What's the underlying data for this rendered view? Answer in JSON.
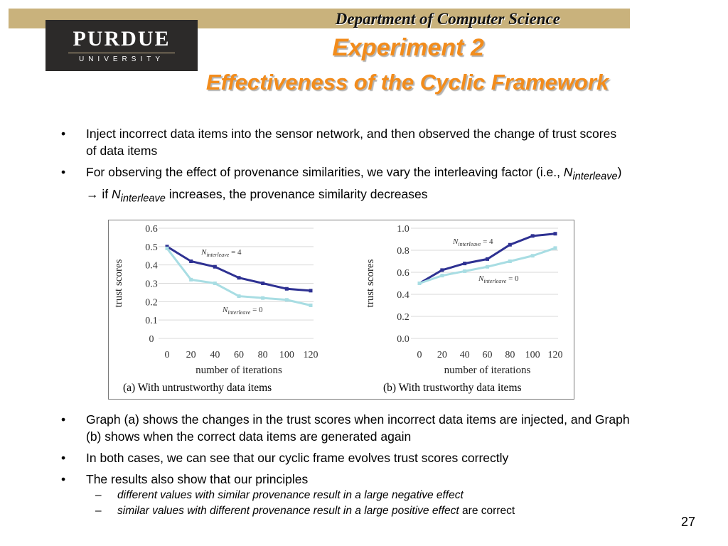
{
  "header": {
    "department": "Department of Computer Science",
    "logo_name": "PURDUE",
    "logo_sub": "UNIVERSITY"
  },
  "title": {
    "line1": "Experiment 2",
    "line2": "Effectiveness of the Cyclic Framework"
  },
  "bullets_top": [
    {
      "text": "Inject incorrect data items into the sensor network, and then observed the change of trust scores of data items"
    },
    {
      "text_before": "For observing the effect of provenance similarities, we vary the interleaving factor (i.e., ",
      "N": "N",
      "sub": "interleave",
      "arrow": "→",
      "text_if": " if ",
      "text_after": " increases, the provenance similarity decreases"
    }
  ],
  "bullets_bottom": [
    {
      "text": "Graph (a) shows the changes in the trust scores when incorrect data items are injected, and Graph (b) shows when the correct data items are generated again"
    },
    {
      "text": "In both cases, we can see that our cyclic frame evolves trust scores correctly"
    },
    {
      "text": "The results also show that our principles"
    }
  ],
  "sub_bullets": [
    {
      "dash": "–",
      "italic": "different values with similar provenance result in a large negative effect",
      "tail": ""
    },
    {
      "dash": "–",
      "italic": "similar values with different provenance result in a large positive effect",
      "tail": " are correct"
    }
  ],
  "page_number": "27",
  "colors": {
    "series_4": "#2e3192",
    "series_0": "#a8dde3",
    "title": "#f28c1c",
    "dept_bar": "#c9b27c",
    "logo_bg": "#2c2a29"
  },
  "chart_data": [
    {
      "type": "line",
      "caption": "(a) With untrustworthy data items",
      "xlabel": "number of iterations",
      "ylabel": "trust scores",
      "x": [
        0,
        20,
        40,
        60,
        80,
        100,
        120
      ],
      "y_ticks": [
        "0",
        "0.1",
        "0.2",
        "0.3",
        "0.4",
        "0.5",
        "0.6"
      ],
      "ylim": [
        0,
        0.6
      ],
      "series": [
        {
          "name_N": "N",
          "name_sub": "interleave",
          "name_tail": " = 4",
          "values": [
            0.5,
            0.42,
            0.39,
            0.33,
            0.3,
            0.27,
            0.26
          ]
        },
        {
          "name_N": "N",
          "name_sub": "interleave",
          "name_tail": " = 0",
          "values": [
            0.49,
            0.32,
            0.3,
            0.23,
            0.22,
            0.21,
            0.18
          ]
        }
      ]
    },
    {
      "type": "line",
      "caption": "(b) With trustworthy data items",
      "xlabel": "number of iterations",
      "ylabel": "trust scores",
      "x": [
        0,
        20,
        40,
        60,
        80,
        100,
        120
      ],
      "y_ticks": [
        "0.0",
        "0.2",
        "0.4",
        "0.6",
        "0.8",
        "1.0"
      ],
      "ylim": [
        0,
        1.0
      ],
      "series": [
        {
          "name_N": "N",
          "name_sub": "interleave",
          "name_tail": " = 4",
          "values": [
            0.5,
            0.62,
            0.68,
            0.72,
            0.85,
            0.93,
            0.95
          ]
        },
        {
          "name_N": "N",
          "name_sub": "interleave",
          "name_tail": " = 0",
          "values": [
            0.5,
            0.57,
            0.61,
            0.65,
            0.7,
            0.75,
            0.82
          ]
        }
      ]
    }
  ]
}
